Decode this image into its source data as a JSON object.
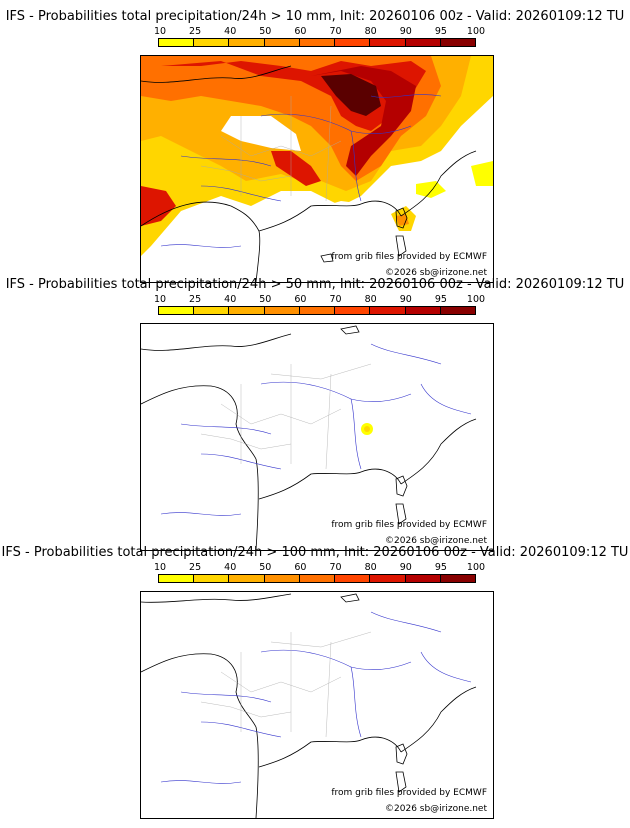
{
  "legend": {
    "labels": [
      "10",
      "25",
      "40",
      "50",
      "60",
      "70",
      "80",
      "90",
      "95",
      "100"
    ],
    "colors": [
      "#ffff00",
      "#ffd600",
      "#ffb000",
      "#ff9000",
      "#ff7000",
      "#ff4500",
      "#dd1500",
      "#b40000",
      "#880000",
      "#5a0000"
    ]
  },
  "credits": {
    "source": "from grib files provided by ECMWF",
    "copyright": "©2026 sb@irizone.net"
  },
  "panels": [
    {
      "title": "IFS - Probabilities total precipitation/24h > 10 mm, Init: 20260106 00z - Valid: 20260109:12 TU",
      "threshold_mm": 10
    },
    {
      "title": "IFS - Probabilities total precipitation/24h > 50 mm, Init: 20260106 00z - Valid: 20260109:12 TU",
      "threshold_mm": 50
    },
    {
      "title": "IFS - Probabilities total precipitation/24h > 100 mm, Init: 20260106 00z - Valid: 20260109:12 TU",
      "threshold_mm": 100
    }
  ]
}
